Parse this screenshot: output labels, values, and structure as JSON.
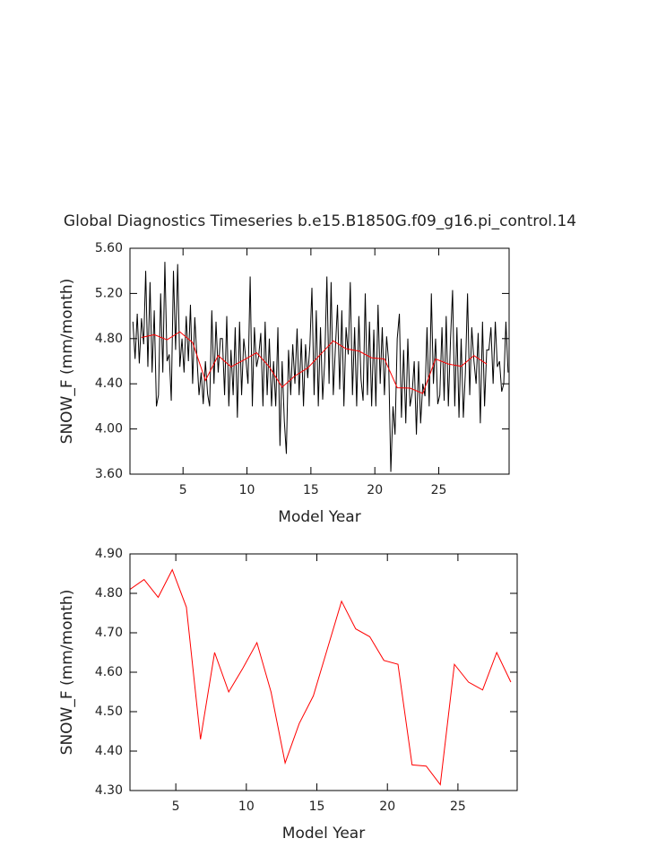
{
  "chart_data": [
    {
      "type": "line",
      "title": "Global Diagnostics Timeseries b.e15.B1850G.f09_g16.pi_control.14",
      "xlabel": "Model Year",
      "ylabel": "SNOW_F (mm/month)",
      "xlim": [
        0.85,
        30.5
      ],
      "xticks": [
        5,
        10,
        15,
        20,
        25
      ],
      "ylim": [
        3.6,
        5.6
      ],
      "yticks": [
        {
          "value": 3.6,
          "label": "3.60"
        },
        {
          "value": 4.0,
          "label": "4.00"
        },
        {
          "value": 4.4,
          "label": "4.40"
        },
        {
          "value": 4.8,
          "label": "4.80"
        },
        {
          "value": 5.2,
          "label": "5.20"
        },
        {
          "value": 5.6,
          "label": "5.60"
        }
      ],
      "series": [
        {
          "color": "#000000",
          "x": [
            1.08,
            1.25,
            1.42,
            1.58,
            1.75,
            1.92,
            2.08,
            2.25,
            2.42,
            2.58,
            2.75,
            2.92,
            3.08,
            3.25,
            3.42,
            3.58,
            3.75,
            3.92,
            4.08,
            4.25,
            4.42,
            4.58,
            4.75,
            4.92,
            5.08,
            5.25,
            5.42,
            5.58,
            5.75,
            5.92,
            6.08,
            6.25,
            6.42,
            6.58,
            6.75,
            6.92,
            7.08,
            7.25,
            7.42,
            7.58,
            7.75,
            7.92,
            8.08,
            8.25,
            8.42,
            8.58,
            8.75,
            8.92,
            9.08,
            9.25,
            9.42,
            9.58,
            9.75,
            9.92,
            10.08,
            10.25,
            10.42,
            10.58,
            10.75,
            10.92,
            11.08,
            11.25,
            11.42,
            11.58,
            11.75,
            11.92,
            12.08,
            12.25,
            12.42,
            12.58,
            12.75,
            12.92,
            13.08,
            13.25,
            13.42,
            13.58,
            13.75,
            13.92,
            14.08,
            14.25,
            14.42,
            14.58,
            14.75,
            14.92,
            15.08,
            15.25,
            15.42,
            15.58,
            15.75,
            15.92,
            16.08,
            16.25,
            16.42,
            16.58,
            16.75,
            16.92,
            17.08,
            17.25,
            17.42,
            17.58,
            17.75,
            17.92,
            18.08,
            18.25,
            18.42,
            18.58,
            18.75,
            18.92,
            19.08,
            19.25,
            19.42,
            19.58,
            19.75,
            19.92,
            20.08,
            20.25,
            20.42,
            20.58,
            20.75,
            20.92,
            21.08,
            21.25,
            21.42,
            21.58,
            21.75,
            21.92,
            22.08,
            22.25,
            22.42,
            22.58,
            22.75,
            22.92,
            23.08,
            23.25,
            23.42,
            23.58,
            23.75,
            23.92,
            24.08,
            24.25,
            24.42,
            24.58,
            24.75,
            24.92,
            25.08,
            25.25,
            25.42,
            25.58,
            25.75,
            25.92,
            26.08,
            26.25,
            26.42,
            26.58,
            26.75,
            26.92,
            27.08,
            27.25,
            27.42,
            27.58,
            27.75,
            27.92,
            28.08,
            28.25,
            28.42,
            28.58,
            28.75,
            28.92,
            29.08,
            29.25,
            29.42,
            29.58,
            29.75,
            29.92,
            30.08,
            30.25,
            30.42
          ],
          "values": [
            4.95,
            4.62,
            5.02,
            4.58,
            4.98,
            4.75,
            5.4,
            4.55,
            5.3,
            4.5,
            5.05,
            4.2,
            4.3,
            5.2,
            4.5,
            5.48,
            4.6,
            4.66,
            4.25,
            5.4,
            4.7,
            5.46,
            4.55,
            4.8,
            4.5,
            5.0,
            4.6,
            5.1,
            4.4,
            4.99,
            4.65,
            4.3,
            4.5,
            4.22,
            4.6,
            4.31,
            4.2,
            5.05,
            4.4,
            4.95,
            4.5,
            4.8,
            4.8,
            4.3,
            5.0,
            4.2,
            4.7,
            4.3,
            4.9,
            4.1,
            4.95,
            4.3,
            4.8,
            4.61,
            4.4,
            5.35,
            4.2,
            4.9,
            4.55,
            4.65,
            4.85,
            4.2,
            4.95,
            4.3,
            4.8,
            4.2,
            4.6,
            4.2,
            4.9,
            3.85,
            4.6,
            4.07,
            3.78,
            4.7,
            4.3,
            4.75,
            4.4,
            4.89,
            4.3,
            4.8,
            4.2,
            4.75,
            4.45,
            4.74,
            5.25,
            4.3,
            5.05,
            4.2,
            4.9,
            4.26,
            4.6,
            5.35,
            4.4,
            5.3,
            4.3,
            4.73,
            5.1,
            4.35,
            5.05,
            4.2,
            4.9,
            4.66,
            5.3,
            4.3,
            4.9,
            4.2,
            5.0,
            4.44,
            4.25,
            5.2,
            4.3,
            4.95,
            4.2,
            4.88,
            4.2,
            5.1,
            4.4,
            4.9,
            4.3,
            4.82,
            4.6,
            3.62,
            4.2,
            3.95,
            4.8,
            5.02,
            4.1,
            4.7,
            4.05,
            4.8,
            4.2,
            4.32,
            4.6,
            3.95,
            4.6,
            4.05,
            4.4,
            4.29,
            4.9,
            4.2,
            5.2,
            4.4,
            4.8,
            4.22,
            4.3,
            4.9,
            4.25,
            5.0,
            4.2,
            4.8,
            5.23,
            4.2,
            4.9,
            4.1,
            4.8,
            4.1,
            4.5,
            5.2,
            4.3,
            4.9,
            4.6,
            4.4,
            4.85,
            4.05,
            4.95,
            4.2,
            4.7,
            4.7,
            4.9,
            4.4,
            4.95,
            4.55,
            4.6,
            4.33,
            4.4,
            4.95,
            4.5
          ]
        },
        {
          "color": "#ff0000",
          "x": [
            1.75,
            2.75,
            3.75,
            4.75,
            5.75,
            6.75,
            7.75,
            8.75,
            9.75,
            10.75,
            11.75,
            12.75,
            13.75,
            14.75,
            15.75,
            16.75,
            17.75,
            18.75,
            19.75,
            20.75,
            21.75,
            22.75,
            23.75,
            24.75,
            25.75,
            26.75,
            27.75,
            28.75
          ],
          "values": [
            4.81,
            4.835,
            4.79,
            4.86,
            4.765,
            4.43,
            4.65,
            4.55,
            4.61,
            4.675,
            4.55,
            4.37,
            4.47,
            4.54,
            4.66,
            4.78,
            4.71,
            4.69,
            4.63,
            4.62,
            4.365,
            4.362,
            4.315,
            4.62,
            4.575,
            4.555,
            4.65,
            4.575
          ]
        }
      ]
    },
    {
      "type": "line",
      "xlabel": "Model Year",
      "ylabel": "SNOW_F (mm/month)",
      "xlim": [
        1.75,
        29.2
      ],
      "xticks": [
        5,
        10,
        15,
        20,
        25
      ],
      "ylim": [
        4.3,
        4.9
      ],
      "yticks": [
        {
          "value": 4.3,
          "label": "4.30"
        },
        {
          "value": 4.4,
          "label": "4.40"
        },
        {
          "value": 4.5,
          "label": "4.50"
        },
        {
          "value": 4.6,
          "label": "4.60"
        },
        {
          "value": 4.7,
          "label": "4.70"
        },
        {
          "value": 4.8,
          "label": "4.80"
        },
        {
          "value": 4.9,
          "label": "4.90"
        }
      ],
      "series": [
        {
          "color": "#ff0000",
          "x": [
            1.75,
            2.75,
            3.75,
            4.75,
            5.75,
            6.75,
            7.75,
            8.75,
            9.75,
            10.75,
            11.75,
            12.75,
            13.75,
            14.75,
            15.75,
            16.75,
            17.75,
            18.75,
            19.75,
            20.75,
            21.75,
            22.75,
            23.75,
            24.75,
            25.75,
            26.75,
            27.75,
            28.75
          ],
          "values": [
            4.81,
            4.835,
            4.79,
            4.86,
            4.765,
            4.43,
            4.65,
            4.55,
            4.61,
            4.675,
            4.55,
            4.37,
            4.47,
            4.54,
            4.66,
            4.78,
            4.71,
            4.69,
            4.63,
            4.62,
            4.365,
            4.362,
            4.315,
            4.62,
            4.575,
            4.555,
            4.65,
            4.575
          ]
        }
      ]
    }
  ]
}
